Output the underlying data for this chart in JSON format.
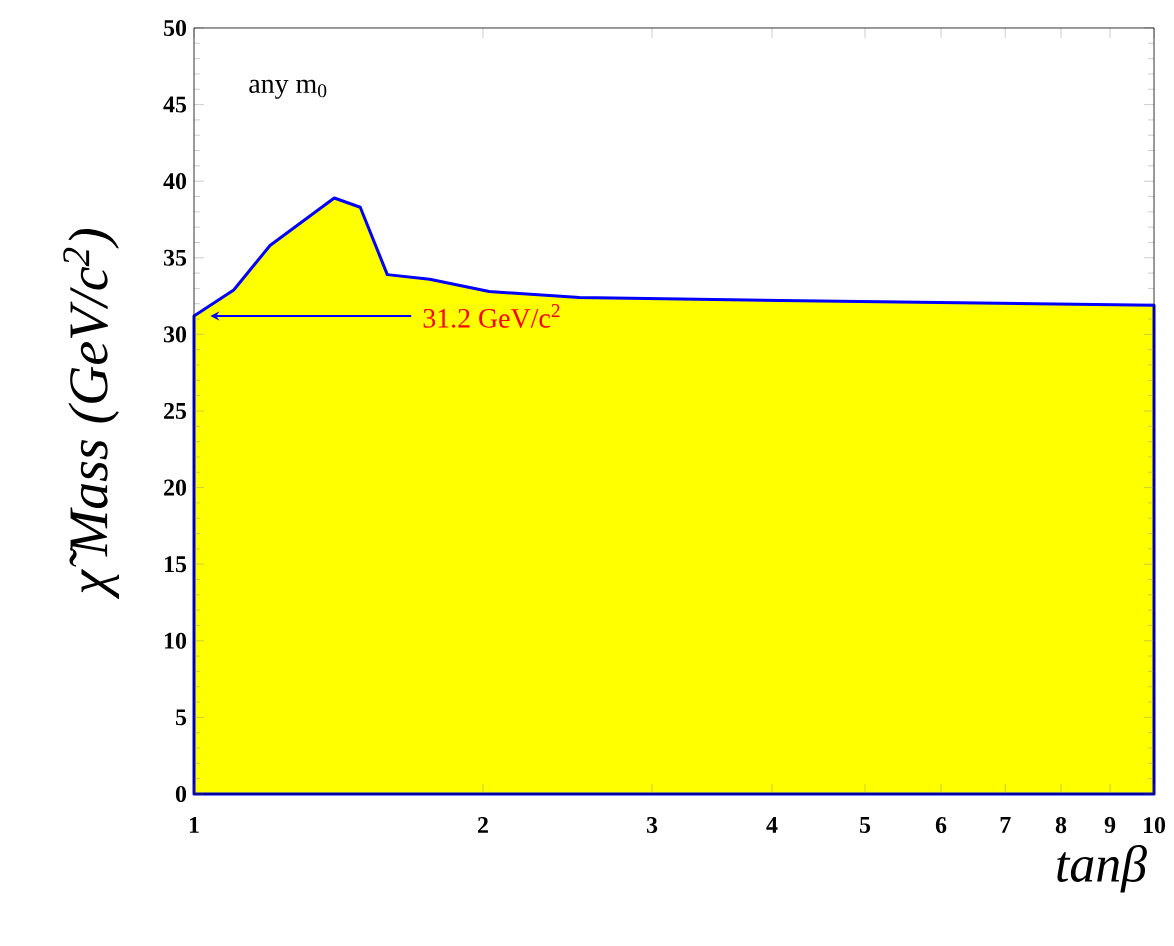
{
  "chart_data": {
    "type": "area",
    "xlabel": "tanβ",
    "ylabel": "χ̃ Mass (GeV/c$^{2}$)",
    "log": "x",
    "xlim": [
      1,
      10
    ],
    "ylim": [
      0,
      50
    ],
    "xticks": [
      1,
      2,
      3,
      4,
      5,
      6,
      7,
      8,
      9,
      10
    ],
    "yticks": [
      0,
      5,
      10,
      15,
      20,
      25,
      30,
      35,
      40,
      45,
      50
    ],
    "x": [
      1.0,
      1.1,
      1.2,
      1.4,
      1.49,
      1.59,
      1.76,
      2.03,
      2.52,
      4.28,
      10.0
    ],
    "series": [
      {
        "color": "#ffff00",
        "values": [
          31.2,
          32.9,
          35.8,
          38.9,
          38.3,
          33.9,
          33.6,
          32.8,
          32.4,
          32.2,
          31.9
        ]
      }
    ],
    "annotations": [
      "any m$_{0}$",
      "31.2 GeV/c$^{2}$"
    ]
  }
}
